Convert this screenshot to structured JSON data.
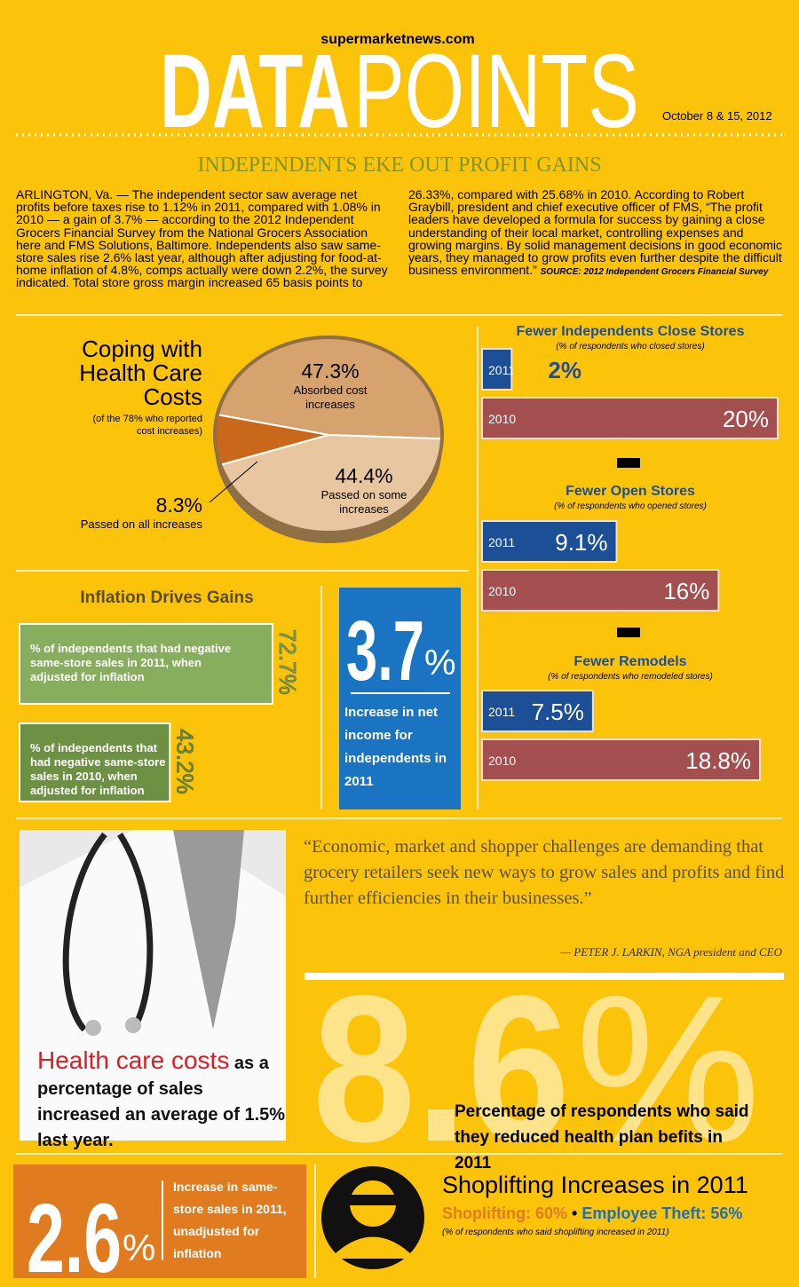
{
  "header": {
    "site": "supermarketnews.com",
    "title_bold": "DATA",
    "title_light": "POINTS",
    "date": "October 8 & 15, 2012"
  },
  "headline": "INDEPENDENTS EKE OUT PROFIT GAINS",
  "article": {
    "text": "ARLINGTON, Va. — The independent sector saw average net profits before taxes rise to 1.12% in 2011, compared with 1.08% in 2010 — a gain of 3.7% — according to the 2012 Independent Grocers Financial Survey from the National Grocers Association here and FMS Solutions, Baltimore. Independents also saw same-store sales rise 2.6% last year, although after adjusting for food-at-home inflation of 4.8%, comps actually were down 2.2%, the survey indicated.  Total store gross margin increased 65 basis points to 26.33%, compared with 25.68% in 2010. According to Robert Graybill, president and chief executive officer of FMS, “The profit leaders have developed a formula for success by gaining a close understanding of their local market, controlling expenses and growing margins.  By solid management decisions in good economic years, they managed to grow profits even further despite the difficult business environment.”",
    "source": "SOURCE: 2012 Independent Grocers Financial Survey"
  },
  "chart_data": [
    {
      "type": "pie",
      "title": "Coping with Health Care Costs",
      "subtitle": "(of the 78% who reported cost increases)",
      "categories": [
        "Absorbed cost increases",
        "Passed on some increases",
        "Passed on all increases"
      ],
      "values": [
        47.3,
        44.4,
        8.3
      ],
      "value_labels": [
        "47.3%",
        "44.4%",
        "8.3%"
      ],
      "colors": [
        "#d6a26e",
        "#e8c6a0",
        "#c9681a"
      ]
    },
    {
      "type": "bar",
      "title": "Fewer Independents Close Stores",
      "subtitle": "(% of respondents who closed stores)",
      "categories": [
        "2011",
        "2010"
      ],
      "values": [
        2,
        20
      ],
      "value_labels": [
        "2%",
        "20%"
      ],
      "colors": [
        "#1d4f97",
        "#a34f4f"
      ]
    },
    {
      "type": "bar",
      "title": "Fewer Open Stores",
      "subtitle": "(% of respondents who opened stores)",
      "categories": [
        "2011",
        "2010"
      ],
      "values": [
        9.1,
        16
      ],
      "value_labels": [
        "9.1%",
        "16%"
      ],
      "colors": [
        "#1d4f97",
        "#a34f4f"
      ]
    },
    {
      "type": "bar",
      "title": "Fewer Remodels",
      "subtitle": "(% of respondents who remodeled stores)",
      "categories": [
        "2011",
        "2010"
      ],
      "values": [
        7.5,
        18.8
      ],
      "value_labels": [
        "7.5%",
        "18.8%"
      ],
      "colors": [
        "#1d4f97",
        "#a34f4f"
      ]
    },
    {
      "type": "bar",
      "title": "Inflation Drives Gains",
      "categories": [
        "% of independents that had negative same-store sales in 2011, when adjusted for inflation",
        "% of independents that had negative same-store sales in 2010, when adjusted for inflation"
      ],
      "values": [
        72.7,
        43.2
      ],
      "value_labels": [
        "72.7%",
        "43.2%"
      ],
      "colors": [
        "#86ae5c",
        "#6d9142"
      ]
    }
  ],
  "net_income": {
    "value": "3.7",
    "unit": "%",
    "label": "Increase in net income for independents in 2011"
  },
  "quote": {
    "text": "“Economic, market and shopper challenges are demanding that grocery retailers seek new ways to grow sales and profits and find further efficiencies in their businesses.”",
    "attribution": "— PETER J. LARKIN, NGA president and CEO"
  },
  "health_care": {
    "highlight": "Health care costs",
    "text": "as a percentage of sales increased an average of 1.5% last year."
  },
  "health_plan": {
    "value": "8.6",
    "unit": "%",
    "label": "Percentage of respondents who said they reduced health plan befits in 2011"
  },
  "same_store": {
    "value": "2.6",
    "unit": "%",
    "label": "Increase in same-store sales in 2011, unadjusted for inflation"
  },
  "shoplifting": {
    "title": "Shoplifting Increases in 2011",
    "shoplifting": "Shoplifting: 60%",
    "separator": "•",
    "employee_theft": "Employee Theft: 56%",
    "note": "(% of respondents who said shoplifting increased in 2011)"
  }
}
